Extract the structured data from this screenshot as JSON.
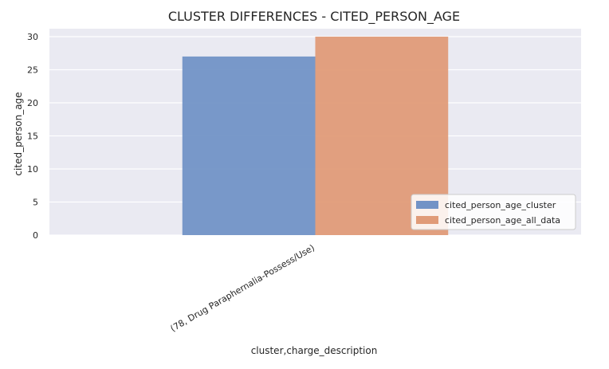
{
  "chart_data": {
    "type": "bar",
    "title": "CLUSTER DIFFERENCES  -  CITED_PERSON_AGE",
    "xlabel": "cluster,charge_description",
    "ylabel": "cited_person_age",
    "categories": [
      "(78, Drug Paraphernalia-Possess/Use)"
    ],
    "series": [
      {
        "name": "cited_person_age_cluster",
        "values": [
          27
        ],
        "color": "#7293c6"
      },
      {
        "name": "cited_person_age_all_data",
        "values": [
          30
        ],
        "color": "#e09b78"
      }
    ],
    "ylim": [
      0,
      30
    ],
    "yticks": [
      0,
      5,
      10,
      15,
      20,
      25,
      30
    ],
    "grid": true,
    "legend_position": "lower-right",
    "background_color": "#eaeaf2",
    "grid_color": "#ffffff"
  }
}
